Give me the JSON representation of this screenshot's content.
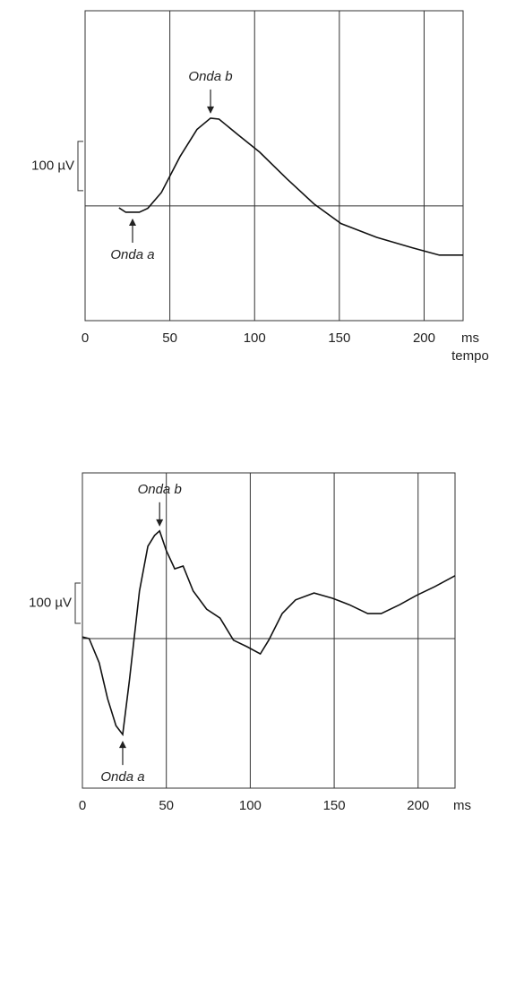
{
  "chart_data": [
    {
      "type": "line",
      "xlabel": "tempo",
      "x_unit": "ms",
      "xlim": [
        0,
        223
      ],
      "xticks": [
        0,
        50,
        100,
        150,
        200
      ],
      "ylim": [
        -233,
        396
      ],
      "baseline": 0,
      "scale_bar": {
        "value": 100,
        "label": "100 µV"
      },
      "grid": true,
      "color": "#111111",
      "x": [
        20,
        24,
        32,
        37,
        45,
        56,
        66,
        74,
        79,
        90,
        103,
        119,
        135,
        151,
        172,
        193,
        209,
        223
      ],
      "values": [
        -4,
        -13,
        -13,
        -5,
        27,
        100,
        155,
        178,
        176,
        145,
        109,
        55,
        4,
        -36,
        -64,
        -85,
        -100,
        -100
      ],
      "annotations": [
        {
          "text": "Onda b",
          "x": 74,
          "y": 178,
          "side": "above"
        },
        {
          "text": "Onda a",
          "x": 28,
          "y": -13,
          "side": "below"
        }
      ]
    },
    {
      "type": "line",
      "x_unit": "ms",
      "xlim": [
        0,
        222
      ],
      "xticks": [
        0,
        50,
        100,
        150,
        200
      ],
      "ylim": [
        -371,
        411
      ],
      "baseline": 0,
      "scale_bar": {
        "value": 100,
        "label": "100 µV"
      },
      "grid": true,
      "color": "#111111",
      "x": [
        0,
        4,
        10,
        15,
        20,
        24,
        28,
        34,
        39,
        43,
        46,
        50,
        55,
        60,
        66,
        74,
        82,
        90,
        98,
        106,
        111,
        119,
        127,
        138,
        149,
        159,
        170,
        178,
        189,
        199,
        210,
        222
      ],
      "values": [
        4,
        0,
        -60,
        -149,
        -216,
        -238,
        -104,
        118,
        229,
        256,
        267,
        218,
        173,
        180,
        118,
        73,
        51,
        -4,
        -20,
        -38,
        -4,
        62,
        96,
        113,
        100,
        84,
        62,
        62,
        84,
        107,
        129,
        156
      ],
      "annotations": [
        {
          "text": "Onda b",
          "x": 46,
          "y": 267,
          "side": "above"
        },
        {
          "text": "Onda a",
          "x": 24,
          "y": -238,
          "side": "below"
        }
      ]
    }
  ]
}
